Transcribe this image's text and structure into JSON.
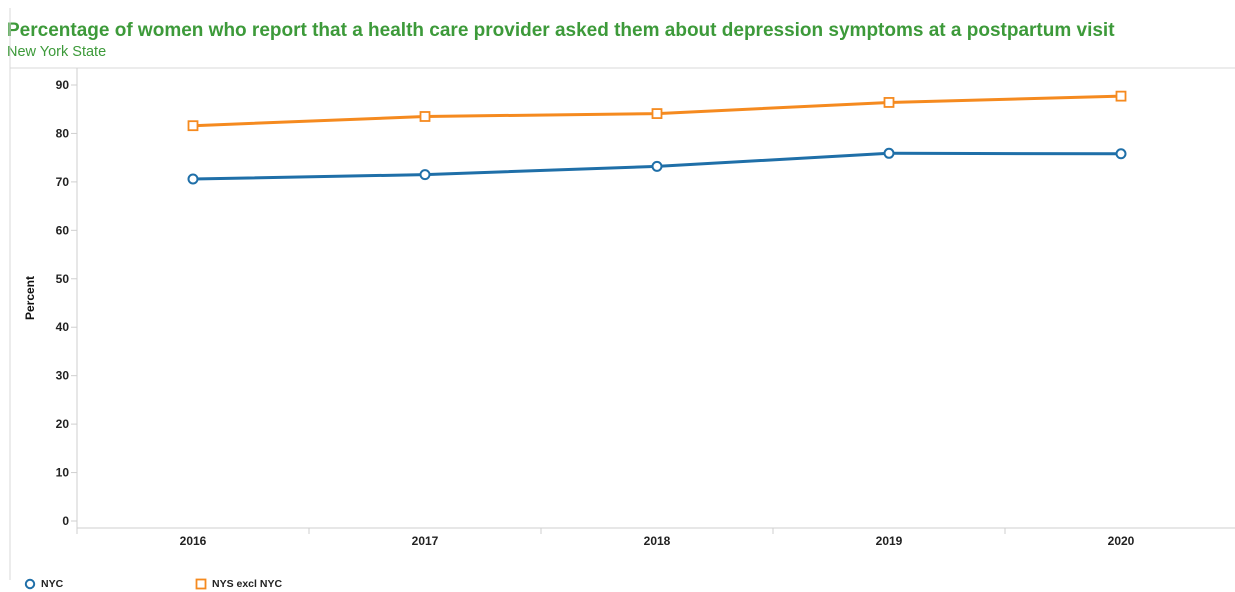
{
  "chart_data": {
    "type": "line",
    "title": "Percentage of women who report that a health care provider asked them about depression symptoms at a postpartum visit",
    "subtitle": "New York State",
    "xlabel": "",
    "ylabel": "Percent",
    "x": [
      "2016",
      "2017",
      "2018",
      "2019",
      "2020"
    ],
    "yticks": [
      0,
      10,
      20,
      30,
      40,
      50,
      60,
      70,
      80,
      90
    ],
    "ylim": [
      0,
      92
    ],
    "grid": false,
    "legend_position": "bottom-left",
    "series": [
      {
        "name": "NYC",
        "values": [
          70.6,
          71.5,
          73.2,
          75.9,
          75.8
        ],
        "color": "#1f6fa8",
        "marker": "circle"
      },
      {
        "name": "NYS excl NYC",
        "values": [
          81.6,
          83.5,
          84.1,
          86.4,
          87.7
        ],
        "color": "#f58a1f",
        "marker": "square"
      }
    ]
  }
}
